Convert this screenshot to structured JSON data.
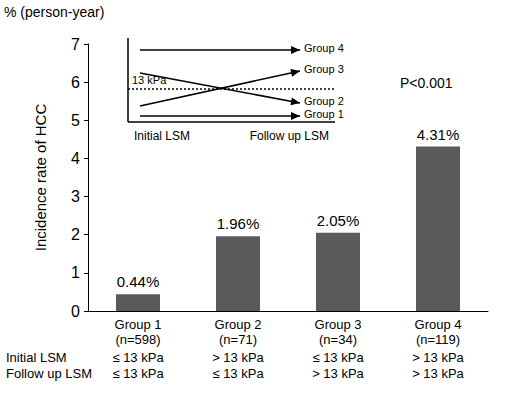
{
  "chart_data": {
    "type": "bar",
    "y_unit": "% (person-year)",
    "y_label": "Incidence rate of HCC",
    "annotation": "P<0.001",
    "categories": [
      "Group 1\n(n=598)",
      "Group 2\n(n=71)",
      "Group 3\n(n=34)",
      "Group 4\n(n=119)"
    ],
    "values": [
      0.44,
      1.96,
      2.05,
      4.31
    ],
    "value_labels": [
      "0.44%",
      "1.96%",
      "2.05%",
      "4.31%"
    ],
    "data_labels": true,
    "color": "#5a5a5a",
    "ylim": [
      0,
      7
    ],
    "yticks": [
      0,
      1,
      2,
      3,
      4,
      5,
      6,
      7
    ],
    "grid": false,
    "rows": [
      {
        "label": "Initial LSM",
        "values": [
          "≤ 13 kPa",
          "> 13 kPa",
          "≤ 13 kPa",
          "> 13 kPa"
        ]
      },
      {
        "label": "Follow up LSM",
        "values": [
          "≤ 13 kPa",
          "≤ 13 kPa",
          "> 13 kPa",
          "> 13 kPa"
        ]
      }
    ],
    "inset": {
      "threshold_label": "13 kPa",
      "axis_labels": [
        "Initial LSM",
        "Follow up LSM"
      ],
      "group_labels": [
        "Group 4",
        "Group 3",
        "Group 2",
        "Group 1"
      ]
    }
  }
}
